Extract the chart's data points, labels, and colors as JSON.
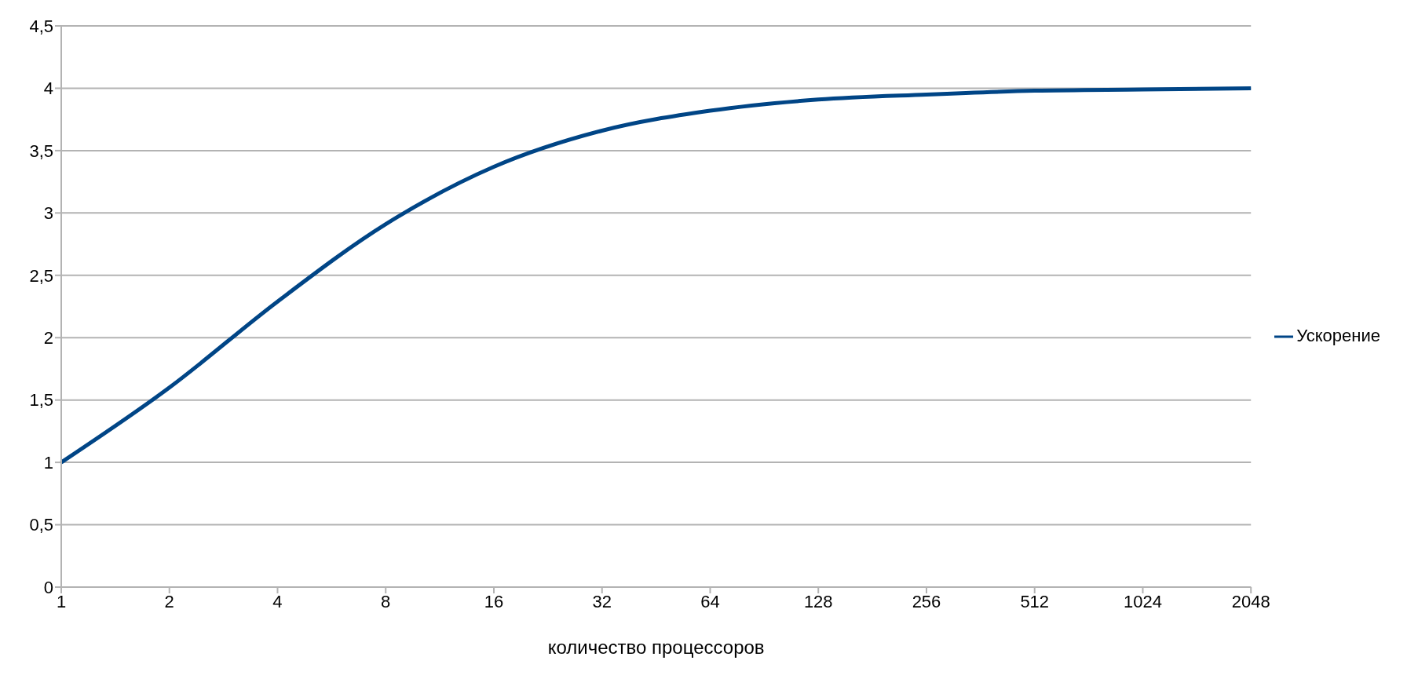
{
  "chart_data": {
    "type": "line",
    "xlabel": "количество процессоров",
    "categories": [
      "1",
      "2",
      "4",
      "8",
      "16",
      "32",
      "64",
      "128",
      "256",
      "512",
      "1024",
      "2048"
    ],
    "series": [
      {
        "name": "Ускорение",
        "color": "#004586",
        "values": [
          1,
          1.6,
          2.29,
          2.91,
          3.37,
          3.66,
          3.82,
          3.91,
          3.95,
          3.98,
          3.99,
          4.0
        ]
      }
    ],
    "ylim": [
      0,
      4.5
    ],
    "yticks": [
      0,
      {
        "value": 0.5,
        "label": "0,5"
      },
      1,
      {
        "value": 1.5,
        "label": "1,5"
      },
      2,
      {
        "value": 2.5,
        "label": "2,5"
      },
      3,
      {
        "value": 3.5,
        "label": "3,5"
      },
      4,
      {
        "value": 4.5,
        "label": "4,5"
      }
    ],
    "grid": "y",
    "legend": "right",
    "marker": "none",
    "line_style": "solid"
  }
}
